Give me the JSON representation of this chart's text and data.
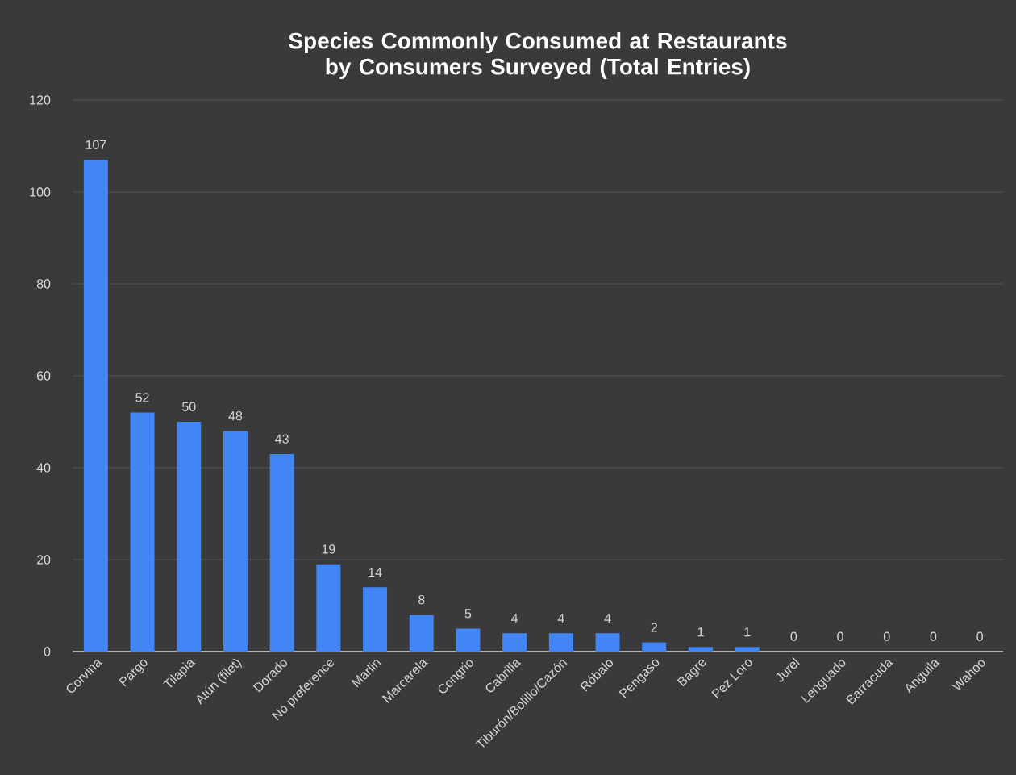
{
  "chart_data": {
    "type": "bar",
    "title": "Species Commonly Consumed at Restaurants by Consumers Surveyed (Total Entries)",
    "categories": [
      "Corvina",
      "Pargo",
      "Tilapia",
      "Atún (filet)",
      "Dorado",
      "No preference",
      "Marlin",
      "Marcarela",
      "Congrio",
      "Cabrilla",
      "Tiburón/Bolillo/Cazón",
      "Róbalo",
      "Pengaso",
      "Bagre",
      "Pez Loro",
      "Jurel",
      "Lenguado",
      "Barracuda",
      "Anguila",
      "Wahoo"
    ],
    "values": [
      107,
      52,
      50,
      48,
      43,
      19,
      14,
      8,
      5,
      4,
      4,
      4,
      2,
      1,
      1,
      0,
      0,
      0,
      0,
      0
    ],
    "color": "#4285f4",
    "ylim": [
      0,
      120
    ],
    "yticks": [
      0,
      20,
      40,
      60,
      80,
      100,
      120
    ],
    "grid": "y",
    "data_labels": true
  }
}
